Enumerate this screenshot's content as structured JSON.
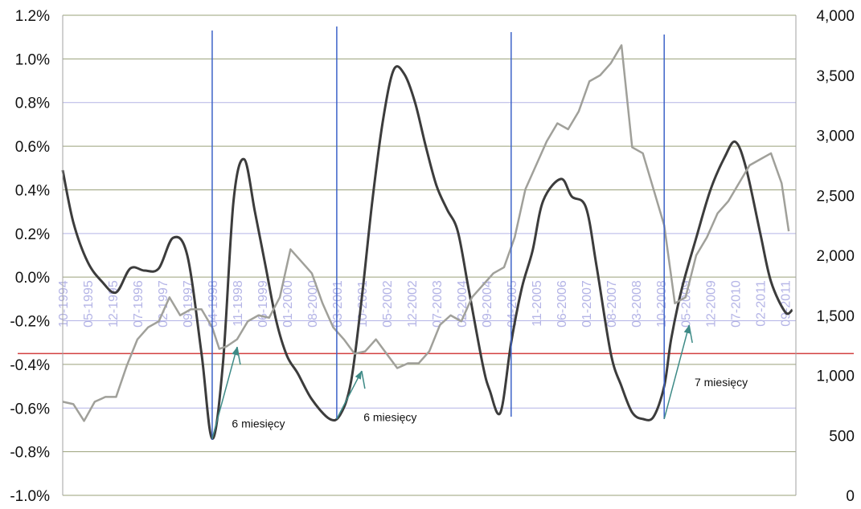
{
  "chart_data": {
    "type": "line",
    "title": "",
    "xlabel": "",
    "ylabel": "",
    "x_tick_labels": [
      "10-1994",
      "05-1995",
      "12-1995",
      "07-1996",
      "02-1997",
      "09-1997",
      "04-1998",
      "11-1998",
      "06-1999",
      "01-2000",
      "08-2000",
      "03-2001",
      "10-2001",
      "05-2002",
      "12-2002",
      "07-2003",
      "02-2004",
      "09-2004",
      "04-2005",
      "11-2005",
      "06-2006",
      "01-2007",
      "08-2007",
      "03-2008",
      "10-2008",
      "05-2009",
      "12-2009",
      "07-2010",
      "02-2011",
      "09-2011"
    ],
    "left_axis": {
      "ylim": [
        -1.0,
        1.2
      ],
      "tick_labels": [
        "-1.0%",
        "-0.8%",
        "-0.6%",
        "-0.4%",
        "-0.2%",
        "0.0%",
        "0.2%",
        "0.4%",
        "0.6%",
        "0.8%",
        "1.0%",
        "1.2%"
      ]
    },
    "right_axis": {
      "ylim": [
        0,
        4000
      ],
      "tick_labels": [
        "0",
        "500",
        "1,000",
        "1,500",
        "2,000",
        "2,500",
        "3,000",
        "3,500",
        "4,000"
      ]
    },
    "grid": true,
    "colors": {
      "indicator": "#3c3c3c",
      "index": "#a0a09a",
      "vertical_markers": "#3d63c8",
      "threshold": "#d24040",
      "arrows": "#3d8a86",
      "gridline_major": "#9aa07a",
      "gridline_blue": "#b4b4e6"
    },
    "series": [
      {
        "axis": "left",
        "color": "#3c3c3c",
        "x": [
          "1994-10",
          "1995-01",
          "1995-05",
          "1995-09",
          "1996-01",
          "1996-05",
          "1996-09",
          "1997-01",
          "1997-05",
          "1997-09",
          "1998-01",
          "1998-04",
          "1998-07",
          "1998-10",
          "1999-01",
          "1999-04",
          "1999-07",
          "1999-10",
          "2000-01",
          "2000-04",
          "2000-08",
          "2001-01",
          "2001-04",
          "2001-07",
          "2001-10",
          "2002-01",
          "2002-04",
          "2002-07",
          "2002-10",
          "2003-01",
          "2003-04",
          "2003-07",
          "2003-10",
          "2004-01",
          "2004-04",
          "2004-08",
          "2004-10",
          "2005-01",
          "2005-04",
          "2005-07",
          "2005-10",
          "2006-01",
          "2006-06",
          "2006-09",
          "2007-01",
          "2007-04",
          "2007-08",
          "2007-11",
          "2008-02",
          "2008-05",
          "2008-08",
          "2008-11",
          "2009-01",
          "2009-04",
          "2009-08",
          "2009-12",
          "2010-04",
          "2010-07",
          "2010-10",
          "2011-02",
          "2011-05",
          "2011-09",
          "2011-11"
        ],
        "values": [
          0.49,
          0.25,
          0.07,
          -0.02,
          -0.07,
          0.04,
          0.03,
          0.04,
          0.18,
          0.1,
          -0.35,
          -0.74,
          -0.4,
          0.35,
          0.54,
          0.3,
          0.05,
          -0.2,
          -0.36,
          -0.44,
          -0.56,
          -0.65,
          -0.63,
          -0.48,
          -0.1,
          0.35,
          0.72,
          0.95,
          0.93,
          0.8,
          0.6,
          0.42,
          0.31,
          0.21,
          -0.05,
          -0.4,
          -0.52,
          -0.62,
          -0.3,
          -0.05,
          0.12,
          0.35,
          0.45,
          0.37,
          0.32,
          0.05,
          -0.35,
          -0.5,
          -0.62,
          -0.65,
          -0.64,
          -0.5,
          -0.28,
          -0.05,
          0.18,
          0.4,
          0.55,
          0.62,
          0.5,
          0.2,
          -0.02,
          -0.16,
          -0.15
        ]
      },
      {
        "axis": "right",
        "color": "#a0a09a",
        "x": [
          "1994-10",
          "1995-01",
          "1995-04",
          "1995-07",
          "1995-10",
          "1996-01",
          "1996-04",
          "1996-07",
          "1996-10",
          "1997-01",
          "1997-04",
          "1997-07",
          "1997-10",
          "1998-01",
          "1998-04",
          "1998-06",
          "1998-08",
          "1998-11",
          "1999-02",
          "1999-05",
          "1999-08",
          "1999-11",
          "2000-02",
          "2000-05",
          "2000-08",
          "2000-11",
          "2001-02",
          "2001-05",
          "2001-08",
          "2001-11",
          "2002-02",
          "2002-05",
          "2002-08",
          "2002-11",
          "2003-02",
          "2003-05",
          "2003-08",
          "2003-11",
          "2004-02",
          "2004-05",
          "2004-08",
          "2004-11",
          "2005-02",
          "2005-05",
          "2005-08",
          "2005-11",
          "2006-02",
          "2006-05",
          "2006-08",
          "2006-11",
          "2007-02",
          "2007-05",
          "2007-08",
          "2007-11",
          "2008-02",
          "2008-05",
          "2008-08",
          "2008-11",
          "2009-02",
          "2009-05",
          "2009-08",
          "2009-11",
          "2010-02",
          "2010-05",
          "2010-08",
          "2010-11",
          "2011-02",
          "2011-05",
          "2011-08",
          "2011-10"
        ],
        "values": [
          780,
          760,
          620,
          780,
          820,
          820,
          1080,
          1300,
          1400,
          1450,
          1650,
          1500,
          1550,
          1550,
          1400,
          1220,
          1240,
          1300,
          1450,
          1500,
          1480,
          1650,
          2050,
          1950,
          1850,
          1600,
          1400,
          1300,
          1180,
          1200,
          1300,
          1180,
          1060,
          1100,
          1100,
          1200,
          1420,
          1500,
          1450,
          1650,
          1750,
          1850,
          1900,
          2150,
          2550,
          2750,
          2950,
          3100,
          3050,
          3200,
          3450,
          3500,
          3600,
          3750,
          2900,
          2850,
          2550,
          2250,
          1600,
          1650,
          2000,
          2150,
          2350,
          2450,
          2600,
          2750,
          2800,
          2850,
          2600,
          2200
        ]
      }
    ],
    "vertical_markers": [
      "1998-04",
      "2001-03",
      "2005-04",
      "2008-11"
    ],
    "threshold_value": -0.35,
    "arrows": [
      {
        "from_x": "1998-04",
        "from_y": -0.74,
        "to_x": "1998-11",
        "to_y": -0.32
      },
      {
        "from_x": "2001-03",
        "from_y": -0.65,
        "to_x": "2001-10",
        "to_y": -0.43
      },
      {
        "from_x": "2008-11",
        "from_y": -0.65,
        "to_x": "2009-06",
        "to_y": -0.22
      }
    ],
    "annotations": [
      {
        "text": "6 miesięcy",
        "x": "1999-05",
        "y": -0.69
      },
      {
        "text": "6 miesięcy",
        "x": "2002-06",
        "y": -0.66
      },
      {
        "text": "7 miesięcy",
        "x": "2010-03",
        "y": -0.5
      }
    ]
  }
}
